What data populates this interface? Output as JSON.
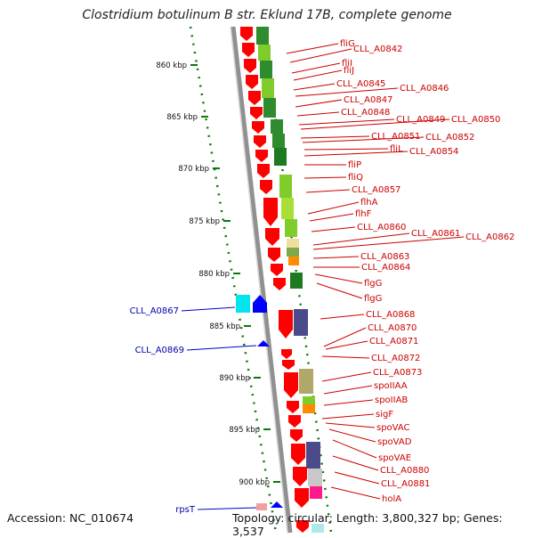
{
  "header": {
    "title": "Clostridium botulinum B str. Eklund 17B, complete genome"
  },
  "footer": {
    "accession": "Accession: NC_010674",
    "topology": "Topology: circular; Length: 3,800,327 bp; Genes: 3,537"
  },
  "colors": {
    "forward_gene": "#ff0000",
    "reverse_gene": "#0000ff",
    "forward_label": "#cc0000",
    "reverse_label": "#0000aa",
    "tick": "#0a7a0a",
    "backbone": "#909090"
  },
  "kbp_ticks": [
    "860 kbp",
    "865 kbp",
    "870 kbp",
    "875 kbp",
    "880 kbp",
    "885 kbp",
    "890 kbp",
    "895 kbp",
    "900 kbp"
  ],
  "forward_genes": [
    "fliG",
    "CLL_A0842",
    "fliI",
    "fliJ",
    "CLL_A0845",
    "CLL_A0846",
    "CLL_A0847",
    "CLL_A0848",
    "CLL_A0849",
    "CLL_A0850",
    "CLL_A0851",
    "CLL_A0852",
    "fliL",
    "CLL_A0854",
    "fliP",
    "fliQ",
    "CLL_A0857",
    "flhA",
    "flhF",
    "CLL_A0860",
    "CLL_A0861",
    "CLL_A0862",
    "CLL_A0863",
    "CLL_A0864",
    "flgG",
    "flgG",
    "CLL_A0868",
    "CLL_A0870",
    "CLL_A0871",
    "CLL_A0872",
    "CLL_A0873",
    "spoIIAA",
    "spoIIAB",
    "sigF",
    "spoVAC",
    "spoVAD",
    "spoVAE",
    "CLL_A0880",
    "CLL_A0881",
    "holA"
  ],
  "reverse_genes": [
    "CLL_A0867",
    "CLL_A0869",
    "rpsT"
  ]
}
